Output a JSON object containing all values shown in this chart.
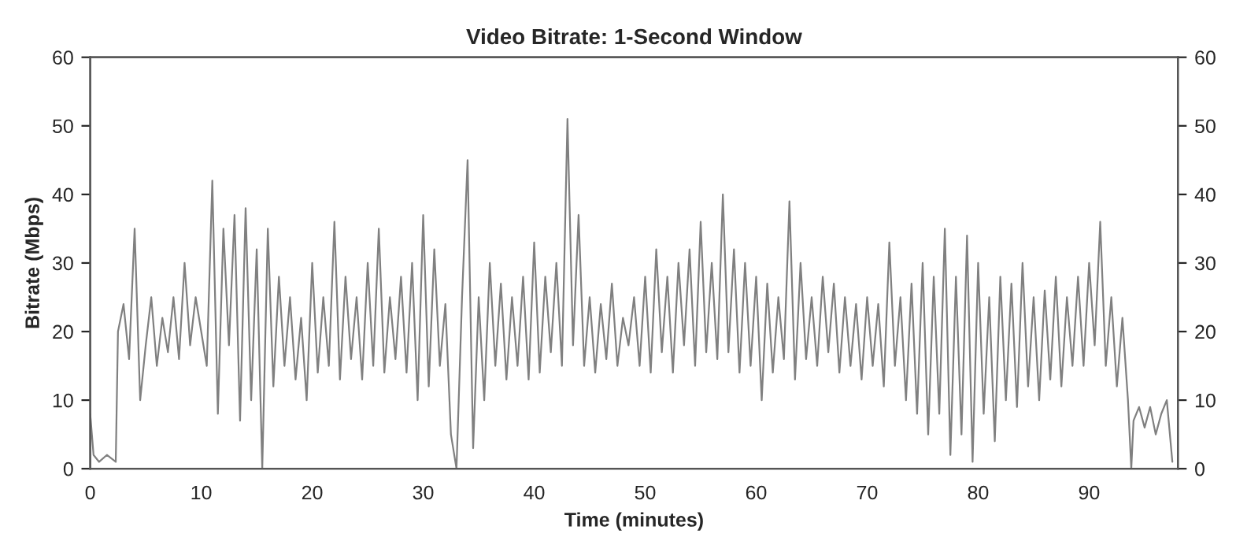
{
  "chart_data": {
    "type": "line",
    "title": "Video Bitrate: 1-Second Window",
    "xlabel": "Time (minutes)",
    "ylabel": "Bitrate (Mbps)",
    "xlim": [
      0,
      98
    ],
    "xticks": [
      0,
      10,
      20,
      30,
      40,
      50,
      60,
      70,
      80,
      90
    ],
    "ylim": [
      0,
      60
    ],
    "yticks": [
      0,
      10,
      20,
      30,
      40,
      50,
      60
    ],
    "y2lim": [
      0,
      60
    ],
    "y2ticks": [
      0,
      10,
      20,
      30,
      40,
      50,
      60
    ],
    "grid": false,
    "series": [
      {
        "color": "#808080",
        "x": [
          0,
          0.3,
          0.8,
          1.5,
          2.3,
          2.5,
          3,
          3.5,
          4,
          4.5,
          5,
          5.5,
          6,
          6.5,
          7,
          7.5,
          8,
          8.5,
          9,
          9.5,
          10,
          10.5,
          11,
          11.5,
          12,
          12.5,
          13,
          13.5,
          14,
          14.5,
          15,
          15.5,
          16,
          16.5,
          17,
          17.5,
          18,
          18.5,
          19,
          19.5,
          20,
          20.5,
          21,
          21.5,
          22,
          22.5,
          23,
          23.5,
          24,
          24.5,
          25,
          25.5,
          26,
          26.5,
          27,
          27.5,
          28,
          28.5,
          29,
          29.5,
          30,
          30.5,
          31,
          31.5,
          32,
          32.5,
          33,
          33.5,
          34,
          34.5,
          35,
          35.5,
          36,
          36.5,
          37,
          37.5,
          38,
          38.5,
          39,
          39.5,
          40,
          40.5,
          41,
          41.5,
          42,
          42.5,
          43,
          43.5,
          44,
          44.5,
          45,
          45.5,
          46,
          46.5,
          47,
          47.5,
          48,
          48.5,
          49,
          49.5,
          50,
          50.5,
          51,
          51.5,
          52,
          52.5,
          53,
          53.5,
          54,
          54.5,
          55,
          55.5,
          56,
          56.5,
          57,
          57.5,
          58,
          58.5,
          59,
          59.5,
          60,
          60.5,
          61,
          61.5,
          62,
          62.5,
          63,
          63.5,
          64,
          64.5,
          65,
          65.5,
          66,
          66.5,
          67,
          67.5,
          68,
          68.5,
          69,
          69.5,
          70,
          70.5,
          71,
          71.5,
          72,
          72.5,
          73,
          73.5,
          74,
          74.5,
          75,
          75.5,
          76,
          76.5,
          77,
          77.5,
          78,
          78.5,
          79,
          79.5,
          80,
          80.5,
          81,
          81.5,
          82,
          82.5,
          83,
          83.5,
          84,
          84.5,
          85,
          85.5,
          86,
          86.5,
          87,
          87.5,
          88,
          88.5,
          89,
          89.5,
          90,
          90.5,
          91,
          91.5,
          92,
          92.5,
          93,
          93.5,
          93.8,
          94,
          94.5,
          95,
          95.5,
          96,
          96.5,
          97,
          97.5
        ],
        "values": [
          8,
          2,
          1,
          2,
          1,
          20,
          24,
          16,
          35,
          10,
          18,
          25,
          15,
          22,
          17,
          25,
          16,
          30,
          18,
          25,
          20,
          15,
          42,
          8,
          35,
          18,
          37,
          7,
          38,
          10,
          32,
          0,
          35,
          12,
          28,
          15,
          25,
          13,
          22,
          10,
          30,
          14,
          25,
          15,
          36,
          13,
          28,
          16,
          25,
          13,
          30,
          15,
          35,
          14,
          25,
          16,
          28,
          14,
          30,
          10,
          37,
          12,
          32,
          15,
          24,
          5,
          0,
          25,
          45,
          3,
          25,
          10,
          30,
          15,
          27,
          13,
          25,
          15,
          28,
          13,
          33,
          14,
          28,
          17,
          30,
          15,
          51,
          18,
          37,
          15,
          25,
          14,
          24,
          16,
          27,
          15,
          22,
          18,
          25,
          15,
          28,
          14,
          32,
          17,
          28,
          14,
          30,
          18,
          32,
          15,
          36,
          17,
          30,
          16,
          40,
          17,
          32,
          14,
          30,
          15,
          28,
          10,
          27,
          14,
          25,
          16,
          39,
          13,
          30,
          16,
          25,
          15,
          28,
          17,
          27,
          14,
          25,
          15,
          24,
          13,
          25,
          15,
          24,
          12,
          33,
          15,
          25,
          10,
          27,
          8,
          30,
          5,
          28,
          8,
          35,
          2,
          28,
          5,
          34,
          1,
          30,
          8,
          25,
          4,
          28,
          10,
          27,
          9,
          30,
          12,
          25,
          10,
          26,
          13,
          28,
          12,
          25,
          15,
          28,
          15,
          30,
          18,
          36,
          15,
          25,
          12,
          22,
          10,
          0,
          7,
          9,
          6,
          9,
          5,
          8,
          10,
          1
        ]
      }
    ]
  }
}
